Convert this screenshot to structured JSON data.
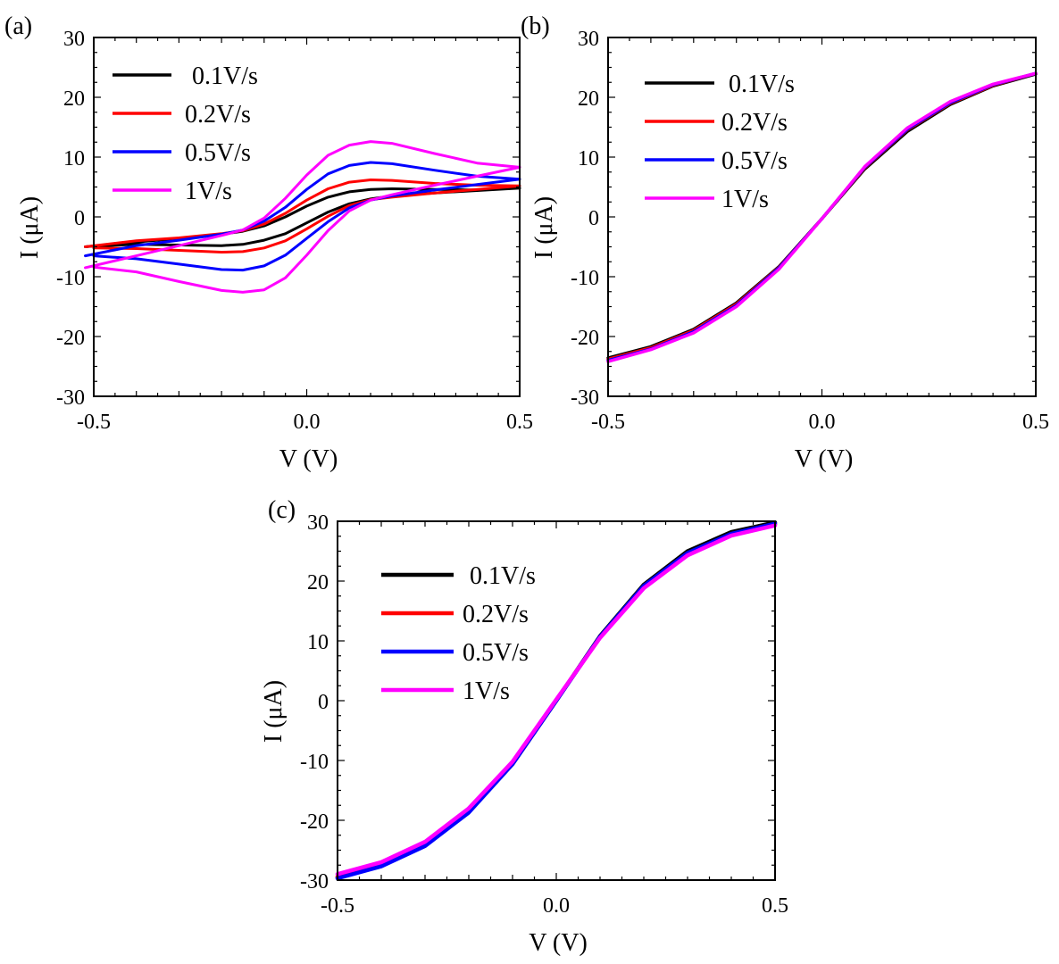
{
  "figure": {
    "legend": [
      "0.1V/s",
      "0.2V/s",
      "0.5V/s",
      "1V/s"
    ],
    "colors": {
      "0.1V/s": "#000000",
      "0.2V/s": "#ff0000",
      "0.5V/s": "#0000ff",
      "1V/s": "#ff00ff"
    }
  },
  "chart_data": [
    {
      "panel_label": "(a)",
      "type": "line",
      "title": "",
      "xlabel": "V (V)",
      "ylabel": "I (μA)",
      "xlim": [
        -0.5,
        0.5
      ],
      "ylim": [
        -30,
        30
      ],
      "xticks": [
        -0.5,
        0.0,
        0.5
      ],
      "xtick_labels": [
        "-0.5",
        "0.0",
        "0.5"
      ],
      "yticks": [
        -30,
        -20,
        -10,
        0,
        10,
        20,
        30
      ],
      "ytick_labels": [
        "-30",
        "-20",
        "-10",
        "0",
        "10",
        "20",
        "30"
      ],
      "legend_position": "top-left",
      "series": [
        {
          "name": "0.1V/s",
          "color": "#000000",
          "x": [
            -0.52,
            -0.4,
            -0.3,
            -0.2,
            -0.15,
            -0.1,
            -0.05,
            0.0,
            0.05,
            0.1,
            0.15,
            0.2,
            0.3,
            0.4,
            0.5,
            0.4,
            0.3,
            0.2,
            0.15,
            0.1,
            0.05,
            0.0,
            -0.05,
            -0.1,
            -0.15,
            -0.2,
            -0.3,
            -0.4,
            -0.5
          ],
          "y": [
            -5.0,
            -4.2,
            -3.6,
            -2.9,
            -2.4,
            -1.5,
            0.0,
            1.8,
            3.3,
            4.2,
            4.6,
            4.7,
            4.6,
            4.5,
            4.8,
            4.4,
            4.0,
            3.5,
            3.0,
            2.2,
            0.8,
            -1.0,
            -2.8,
            -3.9,
            -4.6,
            -4.8,
            -4.7,
            -4.6,
            -4.9
          ]
        },
        {
          "name": "0.2V/s",
          "color": "#ff0000",
          "x": [
            -0.52,
            -0.4,
            -0.3,
            -0.2,
            -0.15,
            -0.1,
            -0.05,
            0.0,
            0.05,
            0.1,
            0.15,
            0.2,
            0.3,
            0.4,
            0.5,
            0.4,
            0.3,
            0.2,
            0.15,
            0.1,
            0.05,
            0.0,
            -0.05,
            -0.1,
            -0.15,
            -0.2,
            -0.3,
            -0.4,
            -0.5
          ],
          "y": [
            -5.0,
            -4.0,
            -3.5,
            -2.8,
            -2.3,
            -1.2,
            0.6,
            2.8,
            4.7,
            5.8,
            6.2,
            6.1,
            5.6,
            5.3,
            5.2,
            4.6,
            4.0,
            3.3,
            2.9,
            1.9,
            0.1,
            -2.0,
            -4.0,
            -5.2,
            -5.8,
            -5.9,
            -5.6,
            -5.3,
            -5.2
          ]
        },
        {
          "name": "0.5V/s",
          "color": "#0000ff",
          "x": [
            -0.52,
            -0.4,
            -0.3,
            -0.2,
            -0.15,
            -0.1,
            -0.05,
            0.0,
            0.05,
            0.1,
            0.15,
            0.2,
            0.3,
            0.4,
            0.5,
            0.4,
            0.3,
            0.2,
            0.15,
            0.1,
            0.05,
            0.0,
            -0.05,
            -0.1,
            -0.15,
            -0.2,
            -0.3,
            -0.4,
            -0.5
          ],
          "y": [
            -6.5,
            -4.8,
            -3.9,
            -2.9,
            -2.2,
            -0.7,
            1.6,
            4.6,
            7.2,
            8.6,
            9.1,
            8.9,
            7.8,
            6.8,
            6.3,
            5.4,
            4.5,
            3.5,
            2.8,
            1.5,
            -0.8,
            -3.6,
            -6.4,
            -8.2,
            -8.9,
            -8.8,
            -7.9,
            -7.0,
            -6.5
          ]
        },
        {
          "name": "1V/s",
          "color": "#ff00ff",
          "x": [
            -0.52,
            -0.4,
            -0.3,
            -0.2,
            -0.15,
            -0.1,
            -0.05,
            0.0,
            0.05,
            0.1,
            0.15,
            0.2,
            0.3,
            0.4,
            0.5,
            0.4,
            0.3,
            0.2,
            0.15,
            0.1,
            0.05,
            0.0,
            -0.05,
            -0.1,
            -0.15,
            -0.2,
            -0.3,
            -0.4,
            -0.5
          ],
          "y": [
            -8.5,
            -6.5,
            -4.8,
            -3.1,
            -2.2,
            -0.2,
            3.1,
            7.0,
            10.3,
            12.0,
            12.6,
            12.3,
            10.6,
            9.0,
            8.3,
            6.8,
            5.3,
            3.7,
            2.8,
            1.0,
            -2.3,
            -6.4,
            -10.2,
            -12.2,
            -12.6,
            -12.3,
            -10.8,
            -9.2,
            -8.4
          ]
        }
      ]
    },
    {
      "panel_label": "(b)",
      "type": "line",
      "title": "",
      "xlabel": "V (V)",
      "ylabel": "I (μA)",
      "xlim": [
        -0.5,
        0.5
      ],
      "ylim": [
        -30,
        30
      ],
      "xticks": [
        -0.5,
        0.0,
        0.5
      ],
      "xtick_labels": [
        "-0.5",
        "0.0",
        "0.5"
      ],
      "yticks": [
        -30,
        -20,
        -10,
        0,
        10,
        20,
        30
      ],
      "ytick_labels": [
        "-30",
        "-20",
        "-10",
        "0",
        "10",
        "20",
        "30"
      ],
      "legend_position": "top-left",
      "series": [
        {
          "name": "0.1V/s",
          "color": "#000000",
          "x": [
            -0.5,
            -0.4,
            -0.3,
            -0.2,
            -0.1,
            0.0,
            0.1,
            0.2,
            0.3,
            0.4,
            0.5
          ],
          "y": [
            -23.6,
            -21.7,
            -18.8,
            -14.4,
            -8.3,
            -0.3,
            8.0,
            14.3,
            18.8,
            21.9,
            23.9
          ]
        },
        {
          "name": "0.2V/s",
          "color": "#ff0000",
          "x": [
            -0.5,
            -0.4,
            -0.3,
            -0.2,
            -0.1,
            0.0,
            0.1,
            0.2,
            0.3,
            0.4,
            0.5
          ],
          "y": [
            -23.8,
            -21.9,
            -19.0,
            -14.6,
            -8.4,
            -0.3,
            8.2,
            14.6,
            19.0,
            22.0,
            24.0
          ]
        },
        {
          "name": "0.5V/s",
          "color": "#0000ff",
          "x": [
            -0.5,
            -0.4,
            -0.3,
            -0.2,
            -0.1,
            0.0,
            0.1,
            0.2,
            0.3,
            0.4,
            0.5
          ],
          "y": [
            -24.0,
            -22.1,
            -19.2,
            -14.8,
            -8.5,
            -0.3,
            8.3,
            14.7,
            19.1,
            22.1,
            24.0
          ]
        },
        {
          "name": "1V/s",
          "color": "#ff00ff",
          "x": [
            -0.5,
            -0.4,
            -0.3,
            -0.2,
            -0.1,
            0.0,
            0.1,
            0.2,
            0.3,
            0.4,
            0.5
          ],
          "y": [
            -24.2,
            -22.2,
            -19.4,
            -15.0,
            -8.7,
            -0.3,
            8.4,
            14.9,
            19.3,
            22.2,
            24.0
          ]
        }
      ]
    },
    {
      "panel_label": "(c)",
      "type": "line",
      "title": "",
      "xlabel": "V (V)",
      "ylabel": "I (μA)",
      "xlim": [
        -0.5,
        0.5
      ],
      "ylim": [
        -30,
        30
      ],
      "xticks": [
        -0.5,
        0.0,
        0.5
      ],
      "xtick_labels": [
        "-0.5",
        "0.0",
        "0.5"
      ],
      "yticks": [
        -30,
        -20,
        -10,
        0,
        10,
        20,
        30
      ],
      "ytick_labels": [
        "-30",
        "-20",
        "-10",
        "0",
        "10",
        "20",
        "30"
      ],
      "legend_position": "top-left",
      "series": [
        {
          "name": "0.1V/s",
          "color": "#000000",
          "x": [
            -0.5,
            -0.4,
            -0.3,
            -0.2,
            -0.1,
            0.0,
            0.1,
            0.2,
            0.3,
            0.4,
            0.5
          ],
          "y": [
            -29.6,
            -27.6,
            -24.2,
            -18.6,
            -10.6,
            0.0,
            10.8,
            19.4,
            25.0,
            28.2,
            29.8
          ]
        },
        {
          "name": "0.2V/s",
          "color": "#ff0000",
          "x": [
            -0.5,
            -0.4,
            -0.3,
            -0.2,
            -0.1,
            0.0,
            0.1,
            0.2,
            0.3,
            0.4,
            0.5
          ],
          "y": [
            -29.4,
            -27.3,
            -23.8,
            -18.2,
            -10.3,
            0.1,
            10.6,
            19.0,
            24.5,
            27.8,
            29.5
          ]
        },
        {
          "name": "0.5V/s",
          "color": "#0000ff",
          "x": [
            -0.5,
            -0.4,
            -0.3,
            -0.2,
            -0.1,
            0.0,
            0.1,
            0.2,
            0.3,
            0.4,
            0.5
          ],
          "y": [
            -29.7,
            -27.7,
            -24.3,
            -18.7,
            -10.6,
            0.0,
            10.7,
            19.2,
            24.7,
            27.9,
            29.6
          ]
        },
        {
          "name": "1V/s",
          "color": "#ff00ff",
          "x": [
            -0.5,
            -0.4,
            -0.3,
            -0.2,
            -0.1,
            0.0,
            0.1,
            0.2,
            0.3,
            0.4,
            0.5
          ],
          "y": [
            -29.0,
            -27.0,
            -23.6,
            -18.0,
            -10.2,
            0.2,
            10.5,
            18.8,
            24.3,
            27.6,
            29.3
          ]
        }
      ]
    }
  ]
}
